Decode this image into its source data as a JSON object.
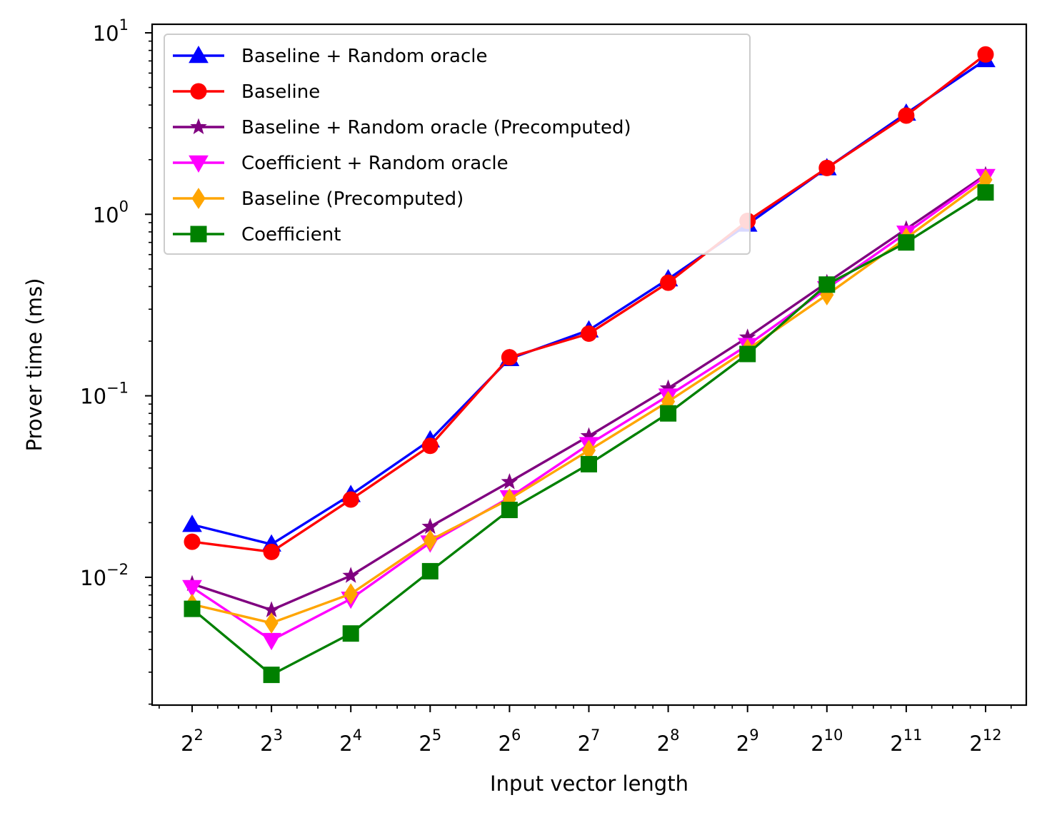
{
  "chart_data": {
    "type": "line",
    "title": "",
    "xlabel": "Input vector length",
    "ylabel": "Prover time (ms)",
    "x_scale": "log2",
    "y_scale": "log10",
    "x": [
      4,
      8,
      16,
      32,
      64,
      128,
      256,
      512,
      1024,
      2048,
      4096
    ],
    "x_tick_labels": [
      {
        "base": "2",
        "exp": "2"
      },
      {
        "base": "2",
        "exp": "3"
      },
      {
        "base": "2",
        "exp": "4"
      },
      {
        "base": "2",
        "exp": "5"
      },
      {
        "base": "2",
        "exp": "6"
      },
      {
        "base": "2",
        "exp": "7"
      },
      {
        "base": "2",
        "exp": "8"
      },
      {
        "base": "2",
        "exp": "9"
      },
      {
        "base": "2",
        "exp": "10"
      },
      {
        "base": "2",
        "exp": "11"
      },
      {
        "base": "2",
        "exp": "12"
      }
    ],
    "y_tick_labels": [
      {
        "base": "10",
        "exp": "1",
        "value": 10
      },
      {
        "base": "10",
        "exp": "0",
        "value": 1
      },
      {
        "base": "10",
        "exp": "−1",
        "value": 0.1
      },
      {
        "base": "10",
        "exp": "−2",
        "value": 0.01
      }
    ],
    "ylim": [
      0.002,
      11
    ],
    "grid": false,
    "legend_position": "top-left",
    "series": [
      {
        "name": "Baseline + Random oracle",
        "color": "#0000ff",
        "marker": "triangle-up",
        "values": [
          0.0195,
          0.0152,
          0.0285,
          0.057,
          0.16,
          0.23,
          0.44,
          0.88,
          1.8,
          3.6,
          7.1
        ]
      },
      {
        "name": "Baseline",
        "color": "#ff0000",
        "marker": "circle",
        "values": [
          0.0157,
          0.0138,
          0.0268,
          0.053,
          0.163,
          0.22,
          0.42,
          0.92,
          1.8,
          3.5,
          7.6
        ]
      },
      {
        "name": "Baseline + Random oracle (Precomputed)",
        "color": "#800080",
        "marker": "star",
        "values": [
          0.0092,
          0.0066,
          0.0102,
          0.019,
          0.0335,
          0.06,
          0.11,
          0.21,
          0.42,
          0.83,
          1.65
        ]
      },
      {
        "name": "Coefficient + Random oracle",
        "color": "#ff00ff",
        "marker": "triangle-down",
        "values": [
          0.0088,
          0.0045,
          0.0076,
          0.0155,
          0.0275,
          0.054,
          0.1,
          0.19,
          0.39,
          0.79,
          1.62
        ]
      },
      {
        "name": "Baseline (Precomputed)",
        "color": "#ffa500",
        "marker": "diamond",
        "values": [
          0.0071,
          0.0056,
          0.0081,
          0.016,
          0.027,
          0.05,
          0.093,
          0.18,
          0.36,
          0.74,
          1.55
        ]
      },
      {
        "name": "Coefficient",
        "color": "#008000",
        "marker": "square",
        "values": [
          0.0067,
          0.0029,
          0.0049,
          0.0108,
          0.0235,
          0.042,
          0.08,
          0.17,
          0.41,
          0.7,
          1.32
        ]
      }
    ]
  }
}
